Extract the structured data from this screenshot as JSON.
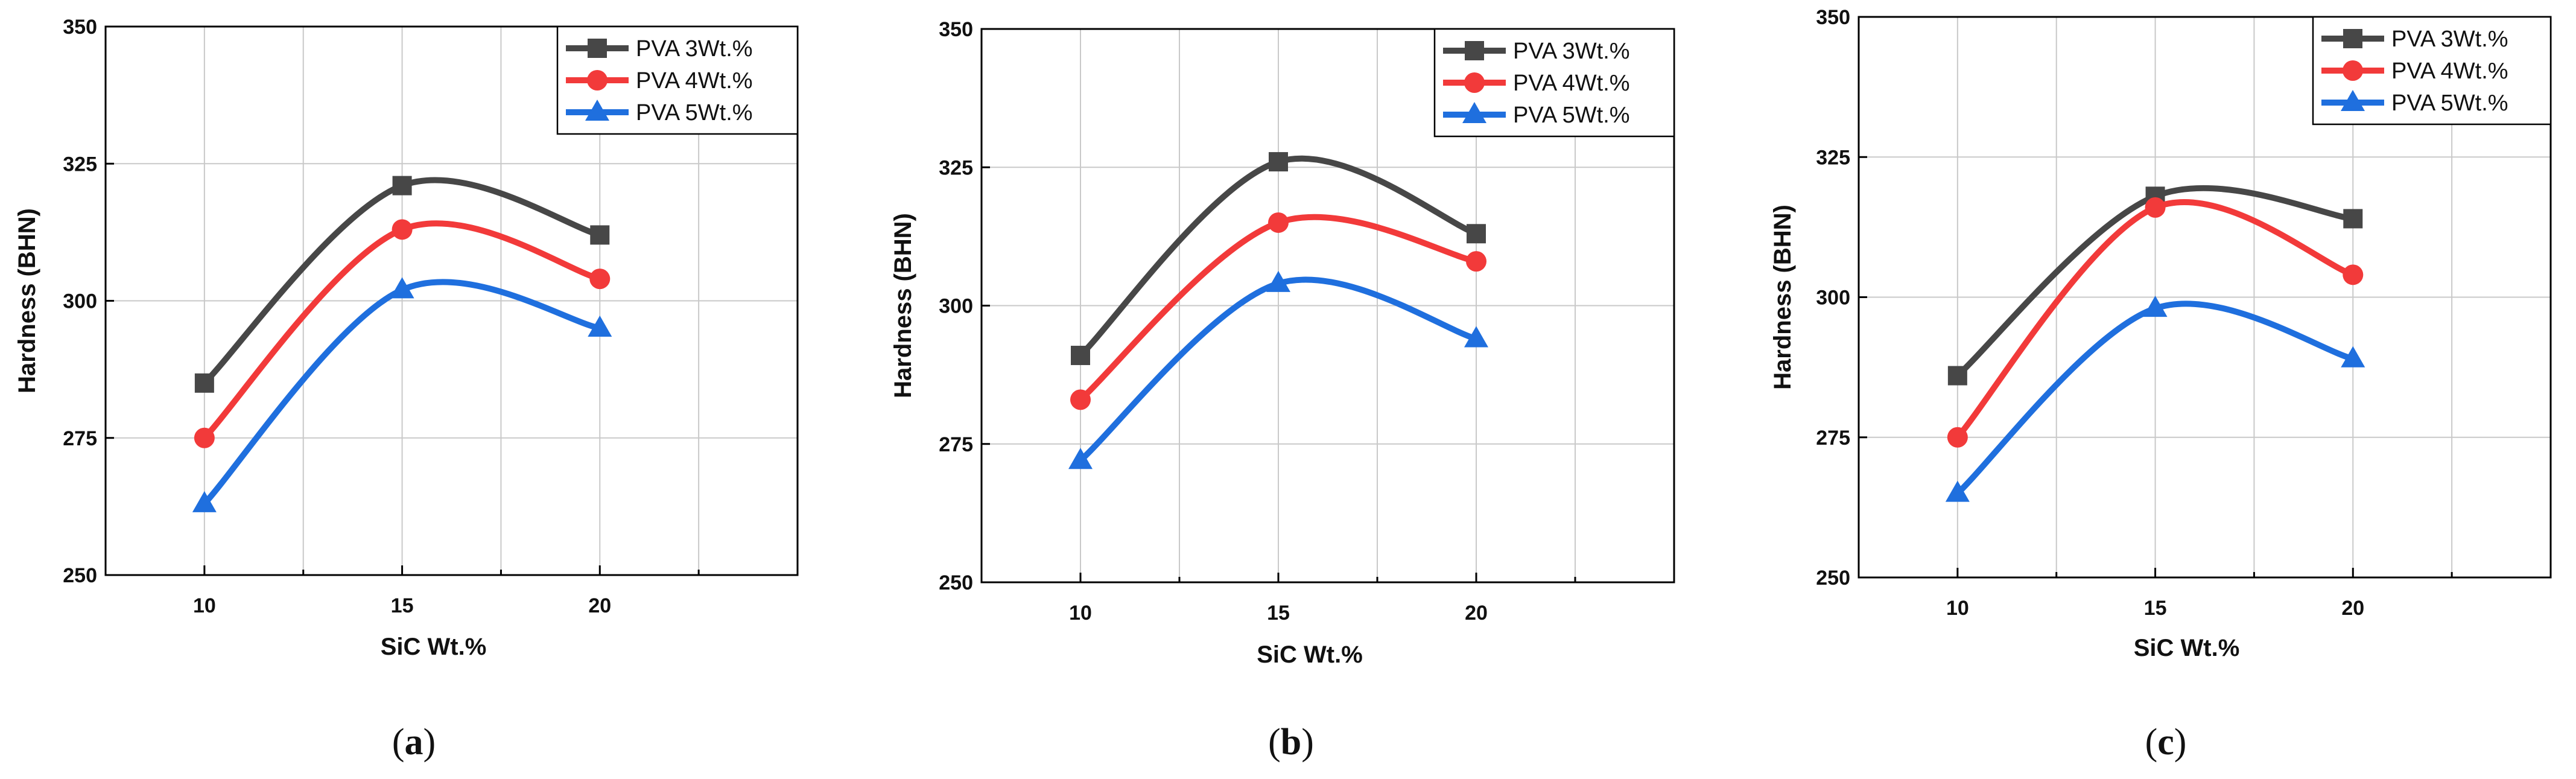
{
  "series_style": [
    {
      "name": "PVA 3Wt.%",
      "color": "#474747",
      "marker": "square"
    },
    {
      "name": "PVA 4Wt.%",
      "color": "#f23a3a",
      "marker": "circle"
    },
    {
      "name": "PVA 5Wt.%",
      "color": "#1f6fde",
      "marker": "triangle"
    }
  ],
  "chart_data": [
    {
      "type": "line",
      "panel_label": "a",
      "title": "",
      "xlabel": "SiC Wt.%",
      "ylabel": "Hardness (BHN)",
      "x": [
        10,
        15,
        20
      ],
      "xticks": [
        10,
        15,
        20
      ],
      "xlim": [
        7.5,
        25
      ],
      "yticks": [
        250,
        275,
        300,
        325,
        350
      ],
      "ylim": [
        250,
        350
      ],
      "grid": true,
      "legend_position": "top-right",
      "series": [
        {
          "name": "PVA 3Wt.%",
          "values": [
            285,
            321,
            312
          ]
        },
        {
          "name": "PVA 4Wt.%",
          "values": [
            275,
            313,
            304
          ]
        },
        {
          "name": "PVA 5Wt.%",
          "values": [
            263,
            302,
            295
          ]
        }
      ]
    },
    {
      "type": "line",
      "panel_label": "b",
      "title": "",
      "xlabel": "SiC Wt.%",
      "ylabel": "Hardness (BHN)",
      "x": [
        10,
        15,
        20
      ],
      "xticks": [
        10,
        15,
        20
      ],
      "xlim": [
        7.5,
        25
      ],
      "yticks": [
        250,
        275,
        300,
        325,
        350
      ],
      "ylim": [
        250,
        350
      ],
      "grid": true,
      "legend_position": "top-right",
      "series": [
        {
          "name": "PVA 3Wt.%",
          "values": [
            291,
            326,
            313
          ]
        },
        {
          "name": "PVA 4Wt.%",
          "values": [
            283,
            315,
            308
          ]
        },
        {
          "name": "PVA 5Wt.%",
          "values": [
            272,
            304,
            294
          ]
        }
      ]
    },
    {
      "type": "line",
      "panel_label": "c",
      "title": "",
      "xlabel": "SiC Wt.%",
      "ylabel": "Hardness (BHN)",
      "x": [
        10,
        15,
        20
      ],
      "xticks": [
        10,
        15,
        20
      ],
      "xlim": [
        7.5,
        25
      ],
      "yticks": [
        250,
        275,
        300,
        325,
        350
      ],
      "ylim": [
        250,
        350
      ],
      "grid": true,
      "legend_position": "top-right",
      "series": [
        {
          "name": "PVA 3Wt.%",
          "values": [
            286,
            318,
            314
          ]
        },
        {
          "name": "PVA 4Wt.%",
          "values": [
            275,
            316,
            304
          ]
        },
        {
          "name": "PVA 5Wt.%",
          "values": [
            265,
            298,
            289
          ]
        }
      ]
    }
  ]
}
